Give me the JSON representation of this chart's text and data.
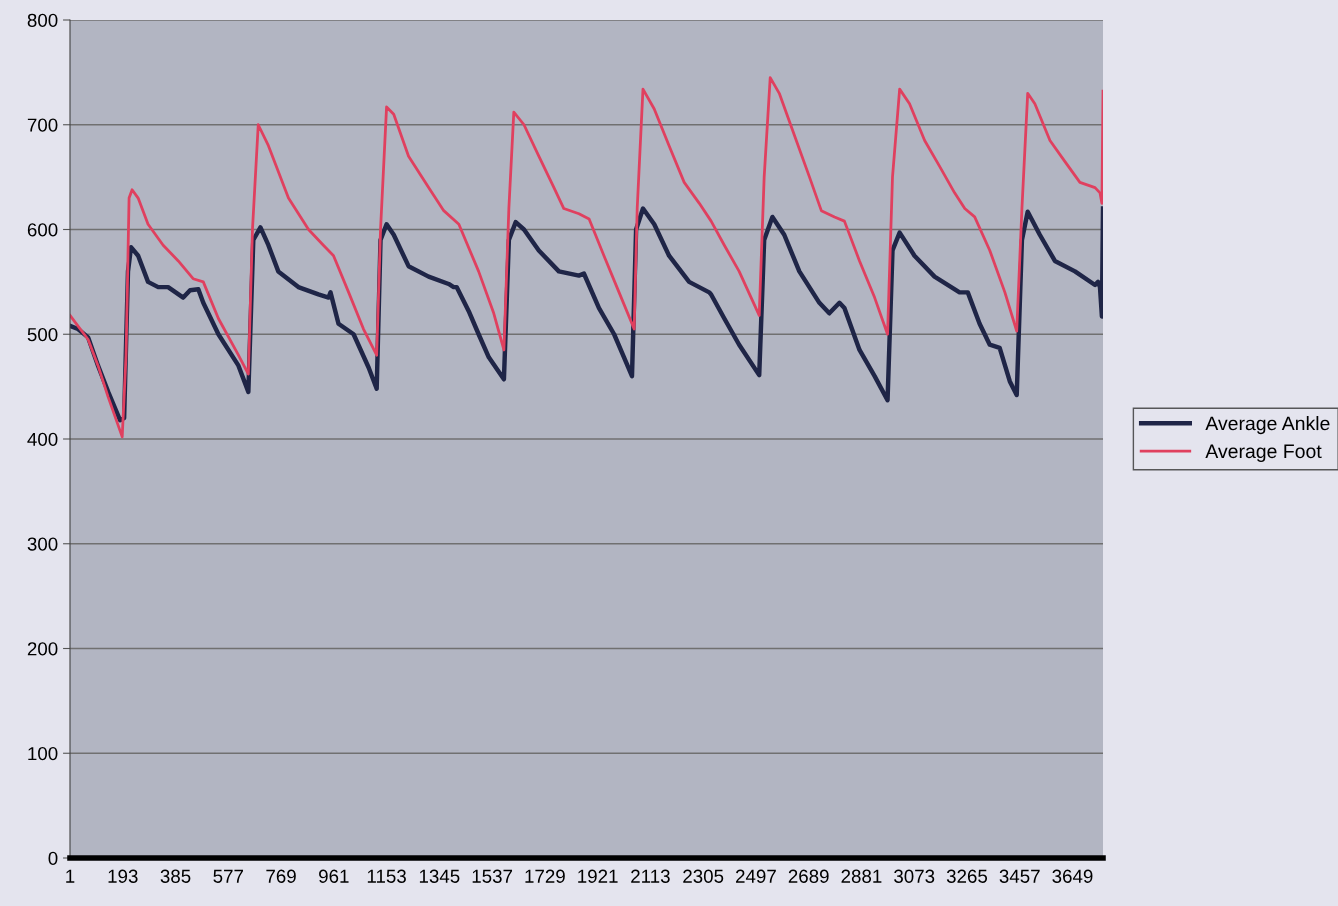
{
  "chart_data": {
    "type": "line",
    "xlim": [
      1,
      3760
    ],
    "xticks": [
      1,
      193,
      385,
      577,
      769,
      961,
      1153,
      1345,
      1537,
      1729,
      1921,
      2113,
      2305,
      2497,
      2689,
      2881,
      3073,
      3265,
      3457,
      3649
    ],
    "ylim": [
      0,
      800
    ],
    "yticks": [
      0,
      100,
      200,
      300,
      400,
      500,
      600,
      700,
      800
    ],
    "grid": "y",
    "legend": "right",
    "marker": "none",
    "line_style": "solid",
    "series": [
      {
        "name": "Average Ankle",
        "color": "#1f2547",
        "x": [
          1,
          30,
          67,
          103,
          140,
          183,
          198,
          212,
          223,
          249,
          285,
          322,
          358,
          413,
          438,
          468,
          486,
          541,
          614,
          650,
          668,
          694,
          723,
          759,
          832,
          905,
          942,
          949,
          978,
          1033,
          1088,
          1117,
          1131,
          1153,
          1179,
          1233,
          1306,
          1379,
          1397,
          1408,
          1452,
          1488,
          1525,
          1580,
          1598,
          1623,
          1653,
          1707,
          1780,
          1853,
          1871,
          1926,
          1981,
          2017,
          2046,
          2061,
          2086,
          2127,
          2181,
          2254,
          2327,
          2334,
          2382,
          2436,
          2509,
          2527,
          2557,
          2600,
          2655,
          2728,
          2764,
          2801,
          2819,
          2874,
          2929,
          2976,
          2994,
          3020,
          3074,
          3147,
          3238,
          3268,
          3311,
          3348,
          3384,
          3421,
          3446,
          3465,
          3486,
          3530,
          3585,
          3658,
          3731,
          3742,
          3749,
          3756,
          3760
        ],
        "values": [
          508,
          505,
          497,
          470,
          445,
          418,
          420,
          560,
          583,
          575,
          550,
          545,
          545,
          535,
          542,
          543,
          530,
          500,
          470,
          445,
          590,
          602,
          585,
          560,
          545,
          538,
          535,
          540,
          510,
          500,
          468,
          448,
          590,
          605,
          595,
          565,
          555,
          548,
          545,
          545,
          522,
          500,
          478,
          457,
          590,
          607,
          600,
          580,
          560,
          556,
          558,
          525,
          500,
          478,
          460,
          600,
          620,
          605,
          575,
          550,
          540,
          538,
          515,
          490,
          461,
          590,
          612,
          595,
          560,
          530,
          520,
          530,
          525,
          485,
          460,
          437,
          580,
          597,
          575,
          555,
          540,
          540,
          510,
          490,
          487,
          455,
          442,
          590,
          617,
          595,
          570,
          560,
          547,
          550,
          545,
          517,
          620
        ]
      },
      {
        "name": "Average Foot",
        "color": "#e0405f",
        "x": [
          1,
          67,
          103,
          140,
          191,
          205,
          216,
          227,
          249,
          285,
          340,
          395,
          449,
          486,
          541,
          614,
          650,
          665,
          686,
          723,
          796,
          869,
          923,
          960,
          1015,
          1069,
          1117,
          1131,
          1153,
          1179,
          1233,
          1306,
          1361,
          1416,
          1488,
          1543,
          1580,
          1598,
          1616,
          1653,
          1707,
          1762,
          1798,
          1853,
          1890,
          1944,
          1999,
          2054,
          2065,
          2086,
          2127,
          2181,
          2236,
          2291,
          2334,
          2382,
          2436,
          2509,
          2527,
          2549,
          2582,
          2637,
          2692,
          2735,
          2783,
          2819,
          2874,
          2929,
          2976,
          2994,
          3020,
          3056,
          3111,
          3166,
          3220,
          3257,
          3293,
          3348,
          3403,
          3446,
          3465,
          3486,
          3512,
          3567,
          3621,
          3676,
          3731,
          3749,
          3756,
          3760
        ],
        "values": [
          518,
          495,
          470,
          440,
          402,
          480,
          630,
          638,
          630,
          605,
          585,
          570,
          553,
          550,
          515,
          480,
          462,
          600,
          700,
          680,
          630,
          600,
          585,
          575,
          540,
          505,
          480,
          600,
          717,
          710,
          670,
          640,
          618,
          605,
          560,
          520,
          485,
          620,
          712,
          700,
          670,
          640,
          620,
          615,
          610,
          575,
          540,
          505,
          620,
          734,
          715,
          680,
          645,
          625,
          608,
          585,
          560,
          518,
          650,
          745,
          730,
          690,
          650,
          618,
          612,
          608,
          570,
          535,
          500,
          650,
          734,
          720,
          685,
          660,
          635,
          620,
          612,
          580,
          540,
          503,
          620,
          730,
          720,
          685,
          665,
          645,
          640,
          635,
          625,
          732
        ]
      }
    ]
  }
}
